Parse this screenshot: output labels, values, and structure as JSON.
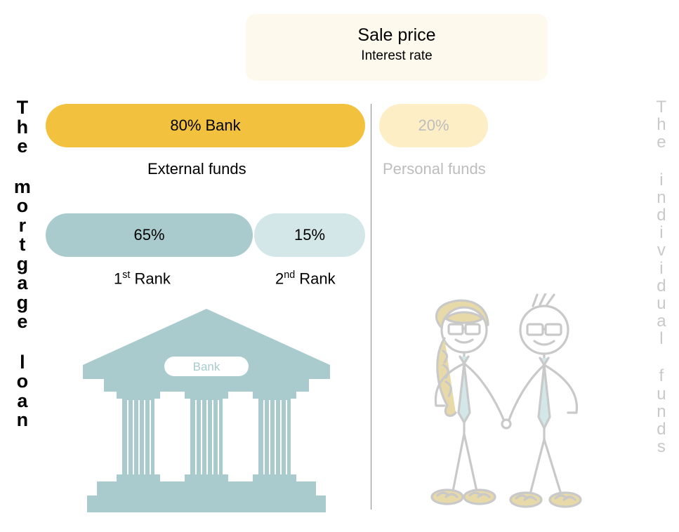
{
  "header": {
    "title": "Sale price",
    "subtitle": "Interest rate",
    "bg": "#fdf9ed"
  },
  "left_label": {
    "word1": "The",
    "word2": "mortgage",
    "word3": "loan"
  },
  "right_label": {
    "word1": "The",
    "word2": "individual",
    "word3": "funds",
    "color": "#c9c9c9"
  },
  "bars": {
    "bank": {
      "text": "80% Bank",
      "percent": 80,
      "color": "#f2c13e",
      "label": "External funds"
    },
    "personal": {
      "text": "20%",
      "percent": 20,
      "color": "#fdeec6",
      "text_color": "#bdbdbd",
      "label": "Personal funds",
      "label_color": "#bdbdbd"
    }
  },
  "ranks": {
    "r1": {
      "text": "65%",
      "percent": 65,
      "color": "#a9cbce",
      "label_pre": "1",
      "label_sup": "st",
      "label_post": " Rank"
    },
    "r2": {
      "text": "15%",
      "percent": 15,
      "color": "#d3e6e8",
      "label_pre": "2",
      "label_sup": "nd",
      "label_post": " Rank"
    }
  },
  "icons": {
    "bank_label": "Bank",
    "bank_fill": "#a9cbce",
    "bank_text": "#a9cbce",
    "people_line": "#c9c9c9",
    "people_accent": "#e8d9a8",
    "people_tie": "#d3e6e8"
  },
  "styling": {
    "font_family": "Century Gothic",
    "body_width": 967,
    "body_height": 758,
    "pill_radius": 31,
    "divider_color": "#8a8a8a"
  }
}
